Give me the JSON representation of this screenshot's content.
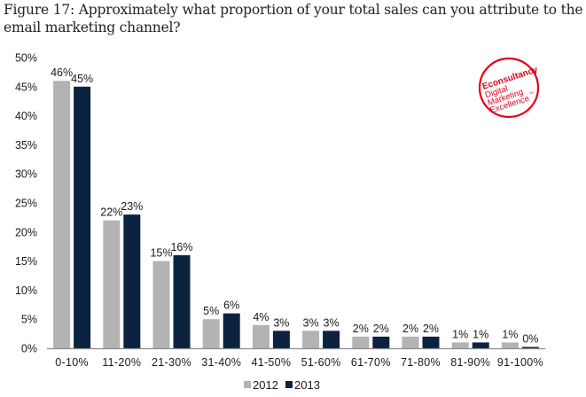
{
  "title": "Figure 17: Approximately what proportion of your total sales can you attribute to the email marketing channel?",
  "logo": {
    "brand": "Econsultancy",
    "line1": "Digital",
    "line2": "Marketing",
    "line3": "Excellence",
    "tm": "™",
    "color": "#e3001b"
  },
  "chart_data": {
    "type": "bar",
    "title": "Figure 17: Approximately what proportion of your total sales can you attribute to the email marketing channel?",
    "xlabel": "",
    "ylabel": "",
    "ylim": [
      0,
      50
    ],
    "yticks": [
      0,
      5,
      10,
      15,
      20,
      25,
      30,
      35,
      40,
      45,
      50
    ],
    "ytick_labels": [
      "0%",
      "5%",
      "10%",
      "15%",
      "20%",
      "25%",
      "30%",
      "35%",
      "40%",
      "45%",
      "50%"
    ],
    "grid": false,
    "legend_position": "bottom-center",
    "categories": [
      "0-10%",
      "11-20%",
      "21-30%",
      "31-40%",
      "41-50%",
      "51-60%",
      "61-70%",
      "71-80%",
      "81-90%",
      "91-100%"
    ],
    "series": [
      {
        "name": "2012",
        "color": "#b3b3b3",
        "values": [
          46,
          22,
          15,
          5,
          4,
          3,
          2,
          2,
          1,
          1
        ],
        "labels": [
          "46%",
          "22%",
          "15%",
          "5%",
          "4%",
          "3%",
          "2%",
          "2%",
          "1%",
          "1%"
        ]
      },
      {
        "name": "2013",
        "color": "#0c2340",
        "values": [
          45,
          23,
          16,
          6,
          3,
          3,
          2,
          2,
          1,
          0
        ],
        "labels": [
          "45%",
          "23%",
          "16%",
          "6%",
          "3%",
          "3%",
          "2%",
          "2%",
          "1%",
          "0%"
        ]
      }
    ]
  }
}
